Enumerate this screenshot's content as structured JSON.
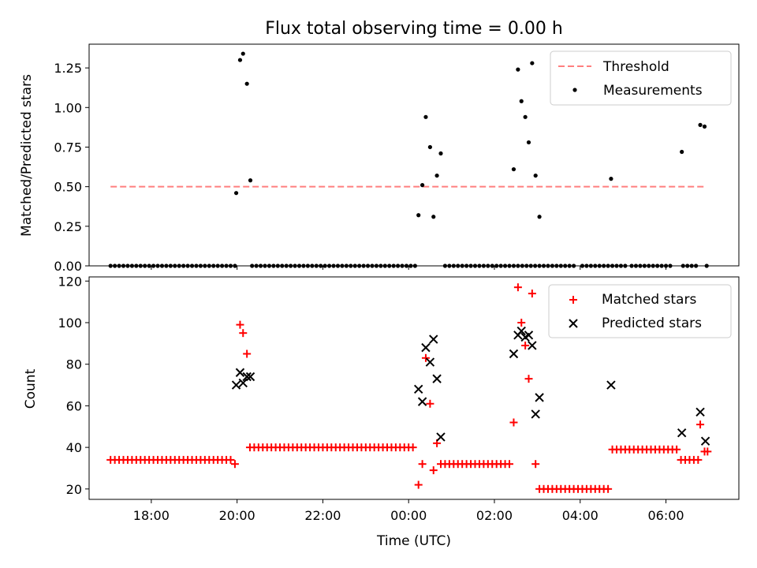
{
  "chart_data": [
    {
      "type": "scatter",
      "title": "Flux total observing time = 0.00 h",
      "xlabel": "",
      "ylabel": "Matched/Predicted stars",
      "xlim": [
        16.55,
        31.7
      ],
      "ylim": [
        0,
        1.4
      ],
      "yticks": [
        0,
        0.25,
        0.5,
        0.75,
        1.0,
        1.25
      ],
      "yticklabels": [
        "0.00",
        "0.25",
        "0.50",
        "0.75",
        "1.00",
        "1.25"
      ],
      "grid": false,
      "legend": "top-right",
      "threshold": {
        "name": "Threshold",
        "value": 0.5,
        "x_start": 17.05,
        "x_end": 30.93,
        "color": "#ff7f7f"
      },
      "series": [
        {
          "name": "Measurements",
          "color": "#000000",
          "marker": "dot",
          "zero_ranges": [
            [
              17.05,
              19.95
            ],
            [
              20.35,
              24.2
            ],
            [
              24.85,
              27.9
            ],
            [
              28.05,
              29.1
            ],
            [
              29.2,
              30.1
            ],
            [
              30.4,
              30.7
            ]
          ],
          "zero_step": 0.1,
          "points": [
            [
              19.98,
              0.46
            ],
            [
              20.07,
              1.3
            ],
            [
              20.14,
              1.34
            ],
            [
              20.23,
              1.15
            ],
            [
              20.31,
              0.54
            ],
            [
              24.23,
              0.32
            ],
            [
              24.32,
              0.51
            ],
            [
              24.4,
              0.94
            ],
            [
              24.5,
              0.75
            ],
            [
              24.58,
              0.31
            ],
            [
              24.66,
              0.57
            ],
            [
              24.75,
              0.71
            ],
            [
              26.45,
              0.61
            ],
            [
              26.55,
              1.24
            ],
            [
              26.63,
              1.04
            ],
            [
              26.72,
              0.94
            ],
            [
              26.8,
              0.78
            ],
            [
              26.88,
              1.28
            ],
            [
              26.96,
              0.57
            ],
            [
              27.05,
              0.31
            ],
            [
              28.72,
              0.55
            ],
            [
              30.37,
              0.72
            ],
            [
              30.8,
              0.89
            ],
            [
              30.9,
              0.88
            ],
            [
              30.95,
              0.0
            ]
          ]
        }
      ]
    },
    {
      "type": "scatter",
      "title": "",
      "xlabel": "Time (UTC)",
      "ylabel": "Count",
      "xlim": [
        16.55,
        31.7
      ],
      "ylim": [
        15,
        122
      ],
      "yticks": [
        20,
        40,
        60,
        80,
        100,
        120
      ],
      "yticklabels": [
        "20",
        "40",
        "60",
        "80",
        "100",
        "120"
      ],
      "xticks": [
        18,
        20,
        22,
        24,
        26,
        28,
        30
      ],
      "xticklabels": [
        "18:00",
        "20:00",
        "22:00",
        "00:00",
        "02:00",
        "04:00",
        "06:00"
      ],
      "grid": false,
      "legend": "top-right",
      "series": [
        {
          "name": "Matched stars",
          "color": "#ff0000",
          "marker": "plus",
          "runs": [
            [
              17.05,
              19.85,
              34
            ],
            [
              20.3,
              24.15,
              40
            ],
            [
              24.75,
              26.4,
              32
            ],
            [
              27.05,
              28.7,
              20
            ],
            [
              28.75,
              30.3,
              39
            ],
            [
              30.35,
              30.75,
              34
            ]
          ],
          "run_step": 0.1,
          "points": [
            [
              19.95,
              32
            ],
            [
              20.07,
              99
            ],
            [
              20.14,
              95
            ],
            [
              20.23,
              85
            ],
            [
              24.23,
              22
            ],
            [
              24.32,
              32
            ],
            [
              24.4,
              83
            ],
            [
              24.5,
              61
            ],
            [
              24.58,
              29
            ],
            [
              24.66,
              42
            ],
            [
              26.45,
              52
            ],
            [
              26.55,
              117
            ],
            [
              26.63,
              100
            ],
            [
              26.72,
              89
            ],
            [
              26.8,
              73
            ],
            [
              26.88,
              114
            ],
            [
              26.96,
              32
            ],
            [
              30.8,
              51
            ],
            [
              30.9,
              38
            ],
            [
              30.97,
              38
            ]
          ]
        },
        {
          "name": "Predicted stars",
          "color": "#000000",
          "marker": "x",
          "points": [
            [
              19.98,
              70
            ],
            [
              20.07,
              76
            ],
            [
              20.14,
              71
            ],
            [
              20.23,
              74
            ],
            [
              20.31,
              74
            ],
            [
              24.23,
              68
            ],
            [
              24.32,
              62
            ],
            [
              24.4,
              88
            ],
            [
              24.5,
              81
            ],
            [
              24.58,
              92
            ],
            [
              24.66,
              73
            ],
            [
              24.75,
              45
            ],
            [
              26.45,
              85
            ],
            [
              26.55,
              94
            ],
            [
              26.63,
              96
            ],
            [
              26.72,
              93
            ],
            [
              26.8,
              94
            ],
            [
              26.88,
              89
            ],
            [
              26.96,
              56
            ],
            [
              27.05,
              64
            ],
            [
              28.72,
              70
            ],
            [
              30.37,
              47
            ],
            [
              30.8,
              57
            ],
            [
              30.92,
              43
            ]
          ]
        }
      ]
    }
  ]
}
